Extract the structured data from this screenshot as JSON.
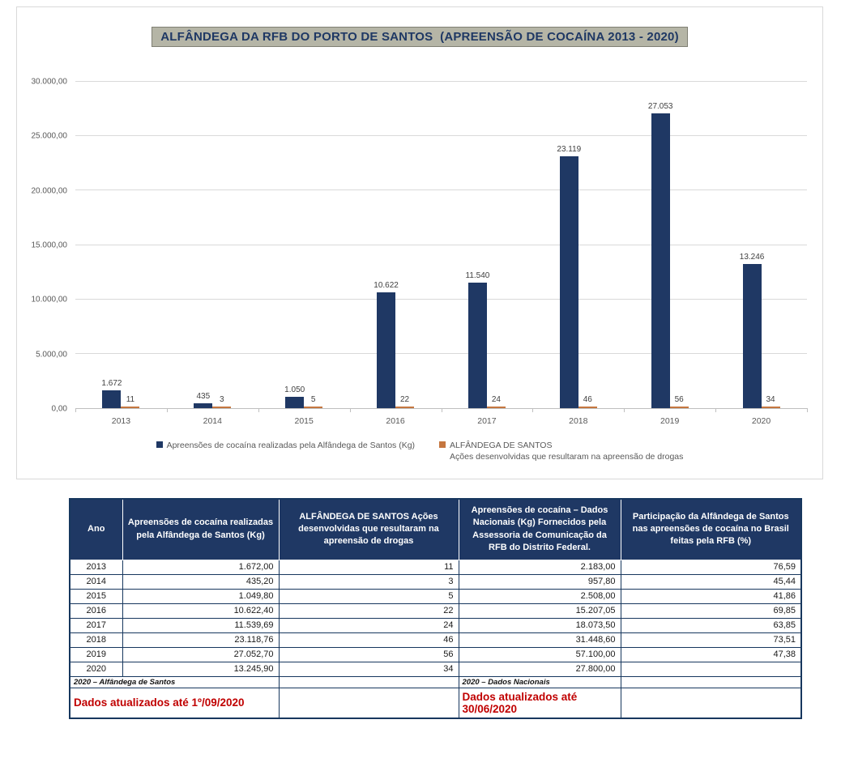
{
  "chart": {
    "title": "ALFÂNDEGA DA RFB DO PORTO DE SANTOS  (APREENSÃO DE COCAÍNA 2013 - 2020)",
    "colors": {
      "navy": "#1f3864",
      "orange": "#c5763f",
      "gridline": "#d9d9d9",
      "axis_text": "#595959",
      "title_bg": "#b5b5a6",
      "update_red": "#c00000"
    },
    "legend": [
      {
        "label": "Apreensões de cocaína realizadas pela Alfândega de Santos (Kg)"
      },
      {
        "line1": "ALFÂNDEGA DE SANTOS",
        "line2": "Ações desenvolvidas que resultaram na apreensão de drogas"
      }
    ]
  },
  "chart_data": {
    "type": "bar",
    "title": "ALFÂNDEGA DA RFB DO PORTO DE SANTOS  (APREENSÃO DE COCAÍNA 2013 - 2020)",
    "categories": [
      "2013",
      "2014",
      "2015",
      "2016",
      "2017",
      "2018",
      "2019",
      "2020"
    ],
    "series": [
      {
        "name": "Apreensões de cocaína realizadas pela Alfândega de Santos (Kg)",
        "values": [
          1672.0,
          435.2,
          1049.8,
          10622.4,
          11539.69,
          23118.76,
          27052.7,
          13245.9
        ],
        "labels": [
          "1.672",
          "435",
          "1.050",
          "10.622",
          "11.540",
          "23.119",
          "27.053",
          "13.246"
        ],
        "color": "#1f3864"
      },
      {
        "name": "ALFÂNDEGA DE SANTOS - Ações desenvolvidas que resultaram na apreensão de drogas",
        "values": [
          11,
          3,
          5,
          22,
          24,
          46,
          56,
          34
        ],
        "labels": [
          "11",
          "3",
          "5",
          "22",
          "24",
          "46",
          "56",
          "34"
        ],
        "color": "#c5763f"
      }
    ],
    "ylim": [
      0,
      30000
    ],
    "yticks": [
      0,
      5000,
      10000,
      15000,
      20000,
      25000,
      30000
    ],
    "ytick_labels": [
      "0,00",
      "5.000,00",
      "10.000,00",
      "15.000,00",
      "20.000,00",
      "25.000,00",
      "30.000,00"
    ],
    "grid": true,
    "legend_position": "bottom"
  },
  "table": {
    "headers": [
      "Ano",
      "Apreensões de cocaína realizadas pela Alfândega de Santos (Kg)",
      "ALFÂNDEGA DE SANTOS Ações desenvolvidas que resultaram na apreensão de drogas",
      "Apreensões de cocaína – Dados Nacionais (Kg) Fornecidos pela Assessoria de Comunicação da RFB do Distrito Federal.",
      "Participação da Alfândega de Santos nas apreensões de cocaína no Brasil feitas pela RFB (%)"
    ],
    "rows": [
      [
        "2013",
        "1.672,00",
        "11",
        "2.183,00",
        "76,59"
      ],
      [
        "2014",
        "435,20",
        "3",
        "957,80",
        "45,44"
      ],
      [
        "2015",
        "1.049,80",
        "5",
        "2.508,00",
        "41,86"
      ],
      [
        "2016",
        "10.622,40",
        "22",
        "15.207,05",
        "69,85"
      ],
      [
        "2017",
        "11.539,69",
        "24",
        "18.073,50",
        "63,85"
      ],
      [
        "2018",
        "23.118,76",
        "46",
        "31.448,60",
        "73,51"
      ],
      [
        "2019",
        "27.052,70",
        "56",
        "57.100,00",
        "47,38"
      ],
      [
        "2020",
        "13.245,90",
        "34",
        "27.800,00",
        ""
      ]
    ],
    "footnotes": {
      "santos_note": "2020 – Alfândega de Santos",
      "nacionais_note": "2020 – Dados Nacionais",
      "santos_update": "Dados atualizados até 1º/09/2020",
      "nacionais_update": "Dados atualizados até 30/06/2020"
    }
  }
}
